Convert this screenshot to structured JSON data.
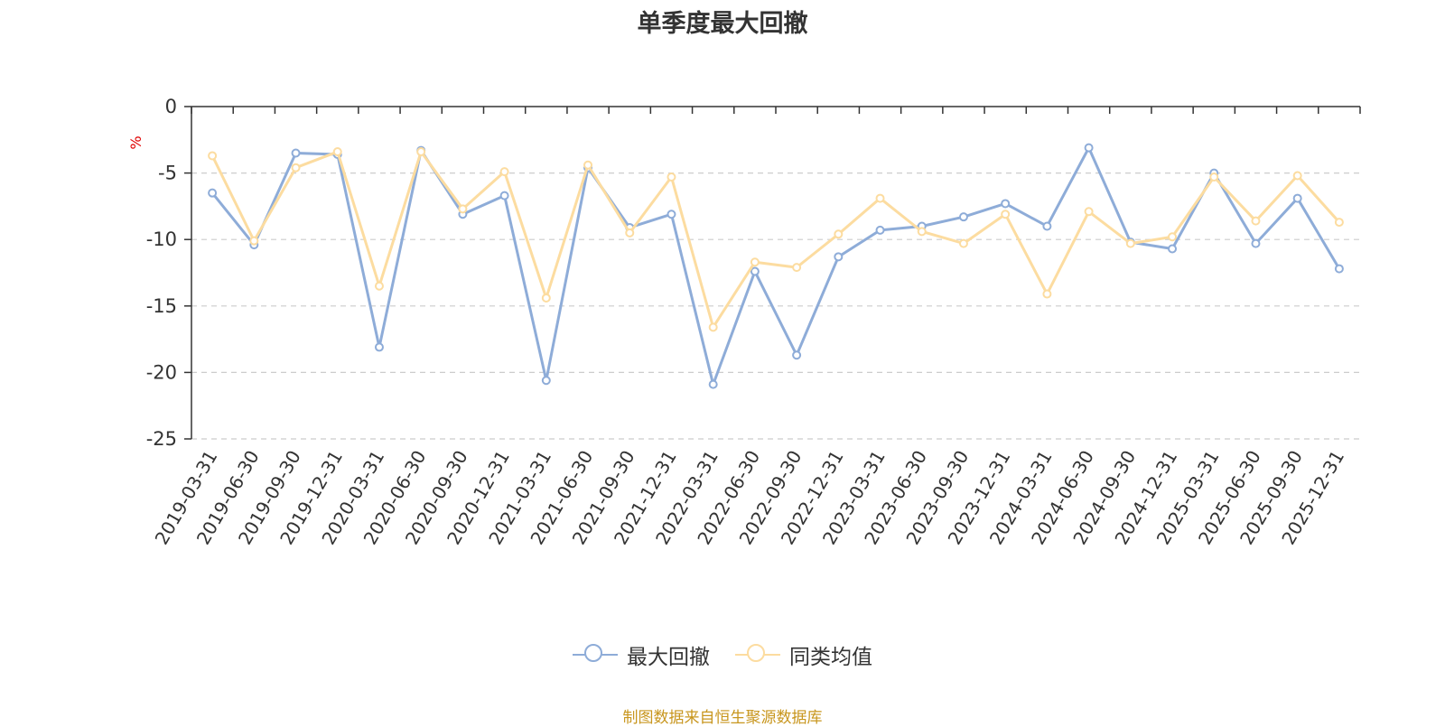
{
  "source_note": "制图数据来自恒生聚源数据库",
  "colors": {
    "series1": "#8eacd8",
    "series2": "#fcdca0",
    "axis": "#333333",
    "grid": "#cccccc",
    "unit": "#e00000",
    "source": "#c8961e"
  },
  "chart_data": {
    "type": "line",
    "title": "单季度最大回撤",
    "ylabel": "%",
    "ylim": [
      -25,
      0
    ],
    "yticks": [
      0,
      -5,
      -10,
      -15,
      -20,
      -25
    ],
    "grid": true,
    "legend_position": "bottom-center",
    "x": [
      "2019-03-31",
      "2019-06-30",
      "2019-09-30",
      "2019-12-31",
      "2020-03-31",
      "2020-06-30",
      "2020-09-30",
      "2020-12-31",
      "2021-03-31",
      "2021-06-30",
      "2021-09-30",
      "2021-12-31",
      "2022-03-31",
      "2022-06-30",
      "2022-09-30",
      "2022-12-31",
      "2023-03-31",
      "2023-06-30",
      "2023-09-30",
      "2023-12-31",
      "2024-03-31",
      "2024-06-30",
      "2024-09-30",
      "2024-12-31",
      "2025-03-31",
      "2025-06-30",
      "2025-09-30",
      "2025-12-31"
    ],
    "series": [
      {
        "name": "最大回撤",
        "color_key": "series1",
        "values": [
          -6.5,
          -10.4,
          -3.5,
          -3.6,
          -18.1,
          -3.3,
          -8.1,
          -6.7,
          -20.6,
          -4.6,
          -9.1,
          -8.1,
          -20.9,
          -12.4,
          -18.7,
          -11.3,
          -9.3,
          -9.0,
          -8.3,
          -7.3,
          -9.0,
          -3.1,
          -10.2,
          -10.7,
          -5.0,
          -10.3,
          -6.9,
          -12.2
        ]
      },
      {
        "name": "同类均值",
        "color_key": "series2",
        "values": [
          -3.7,
          -10.1,
          -4.6,
          -3.4,
          -13.5,
          -3.4,
          -7.7,
          -4.9,
          -14.4,
          -4.4,
          -9.5,
          -5.3,
          -16.6,
          -11.7,
          -12.1,
          -9.6,
          -6.9,
          -9.4,
          -10.3,
          -8.1,
          -14.1,
          -7.9,
          -10.3,
          -9.8,
          -5.3,
          -8.6,
          -5.2,
          -8.7
        ]
      }
    ]
  }
}
